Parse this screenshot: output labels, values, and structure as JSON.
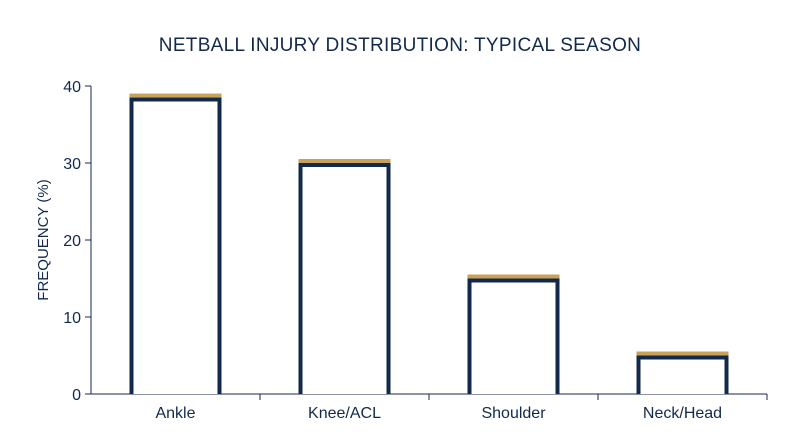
{
  "chart_data": {
    "type": "bar",
    "title": "NETBALL INJURY DISTRIBUTION: TYPICAL SEASON",
    "xlabel": "",
    "ylabel": "FREQUENCY (%)",
    "categories": [
      "Ankle",
      "Knee/ACL",
      "Shoulder",
      "Neck/Head"
    ],
    "values": [
      38.5,
      30,
      15,
      5
    ],
    "ylim": [
      0,
      40
    ],
    "yticks": [
      0,
      10,
      20,
      30,
      40
    ],
    "grid": false,
    "colors": {
      "bar_outline": "#13294b",
      "bar_cap": "#c9a25a",
      "bar_fill": "#ffffff",
      "axis": "#13294b",
      "text": "#13294b"
    }
  }
}
